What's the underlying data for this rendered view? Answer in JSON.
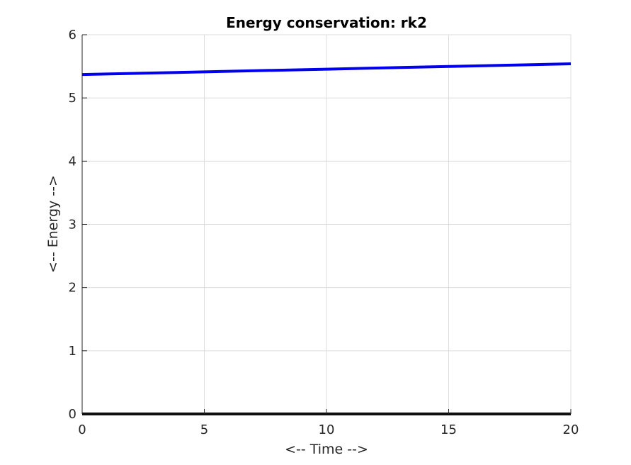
{
  "chart_data": {
    "type": "line",
    "title": "Energy conservation: rk2",
    "xlabel": "<-- Time -->",
    "ylabel": "<-- Energy -->",
    "xlim": [
      0,
      20
    ],
    "ylim": [
      0,
      6
    ],
    "xticks": [
      0,
      5,
      10,
      15,
      20
    ],
    "yticks": [
      0,
      1,
      2,
      3,
      4,
      5,
      6
    ],
    "grid": true,
    "legend": "none",
    "series": [
      {
        "color": "#0000ee",
        "x": [
          0,
          5,
          10,
          15,
          20
        ],
        "y": [
          5.37,
          5.413,
          5.455,
          5.498,
          5.54
        ]
      },
      {
        "color": "#000000",
        "x": [
          0,
          5,
          10,
          15,
          20
        ],
        "y": [
          0,
          0,
          0,
          0,
          0
        ]
      }
    ]
  }
}
